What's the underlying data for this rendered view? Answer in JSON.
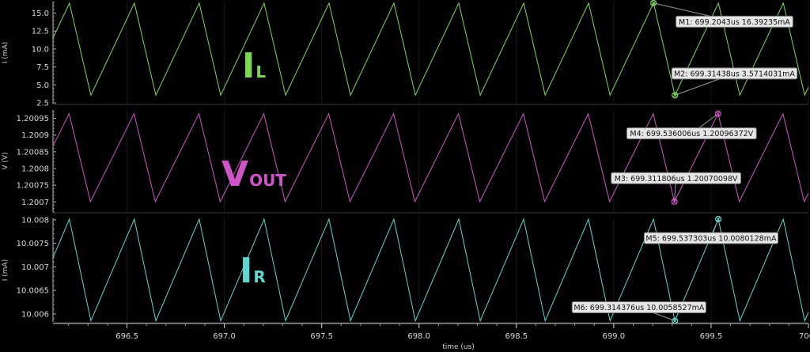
{
  "chart_data": {
    "type": "line",
    "xlabel": "time (us)",
    "xlim": [
      696.12,
      700.0
    ],
    "xticks": [
      "696.5",
      "697.0",
      "697.5",
      "698.0",
      "698.5",
      "699.0",
      "699.5",
      "700"
    ],
    "xtick_values": [
      696.5,
      697.0,
      697.5,
      698.0,
      698.5,
      699.0,
      699.5,
      700.0
    ],
    "panels": [
      {
        "id": "il",
        "signal": "I",
        "signal_sub": "L",
        "color": "#7bd857",
        "ylabel": "I (mA)",
        "ylim": [
          2.4,
          16.6
        ],
        "yticks": [
          "15.0",
          "12.5",
          "10.0",
          "7.5",
          "5.0",
          "2.5"
        ],
        "ytick_values": [
          15.0,
          12.5,
          10.0,
          7.5,
          5.0,
          2.5
        ],
        "waveform": {
          "period_us": 0.3333,
          "peak_time_us": 699.2043,
          "valley_time_us": 699.31438,
          "peak": 16.39,
          "valley": 3.57,
          "start_time_us": 696.12,
          "start_value": 10.0
        },
        "markers": [
          {
            "label": "M1: 699.2043us 16.39235mA",
            "x": 699.2043,
            "y": 16.39235,
            "text_x": 699.62,
            "text_y": 13.8
          },
          {
            "label": "M2: 699.31438us 3.5714031mA",
            "x": 699.31438,
            "y": 3.5714031,
            "text_x": 699.62,
            "text_y": 6.6
          }
        ]
      },
      {
        "id": "vout",
        "signal": "V",
        "signal_sub": "OUT",
        "color": "#cf54c8",
        "ylabel": "V (V)",
        "ylim": [
          1.20067,
          1.200975
        ],
        "yticks": [
          "1.20095",
          "1.2009",
          "1.20085",
          "1.2008",
          "1.20075",
          "1.2007"
        ],
        "ytick_values": [
          1.20095,
          1.2009,
          1.20085,
          1.2008,
          1.20075,
          1.2007
        ],
        "waveform": {
          "period_us": 0.3333,
          "peak_time_us": 699.536006,
          "valley_time_us": 699.311806,
          "peak": 1.200964,
          "valley": 1.200701,
          "start_time_us": 696.12,
          "start_value": 1.2008
        },
        "markers": [
          {
            "label": "M4: 699.536006us 1.20096372V",
            "x": 699.536006,
            "y": 1.20096372,
            "text_x": 699.4,
            "text_y": 1.200905
          },
          {
            "label": "M3: 699.311806us 1.20070098V",
            "x": 699.311806,
            "y": 1.20070098,
            "text_x": 699.32,
            "text_y": 1.200771
          }
        ]
      },
      {
        "id": "ir",
        "signal": "I",
        "signal_sub": "R",
        "color": "#5fd6d0",
        "ylabel": "I (mA)",
        "ylim": [
          10.00583,
          10.00803
        ],
        "yticks": [
          "10.008",
          "10.0075",
          "10.007",
          "10.0065",
          "10.006"
        ],
        "ytick_values": [
          10.008,
          10.0075,
          10.007,
          10.0065,
          10.006
        ],
        "waveform": {
          "period_us": 0.3333,
          "peak_time_us": 699.537303,
          "valley_time_us": 699.314376,
          "peak": 10.0080128,
          "valley": 10.0058527,
          "start_time_us": 696.12,
          "start_value": 10.00687
        },
        "markers": [
          {
            "label": "M5: 699.537303us 10.0080128mA",
            "x": 699.537303,
            "y": 10.0080128,
            "text_x": 699.5,
            "text_y": 10.00761
          },
          {
            "label": "M6: 699.314376us 10.0058527mA",
            "x": 699.314376,
            "y": 10.0058527,
            "text_x": 699.13,
            "text_y": 10.00614
          }
        ]
      }
    ]
  }
}
